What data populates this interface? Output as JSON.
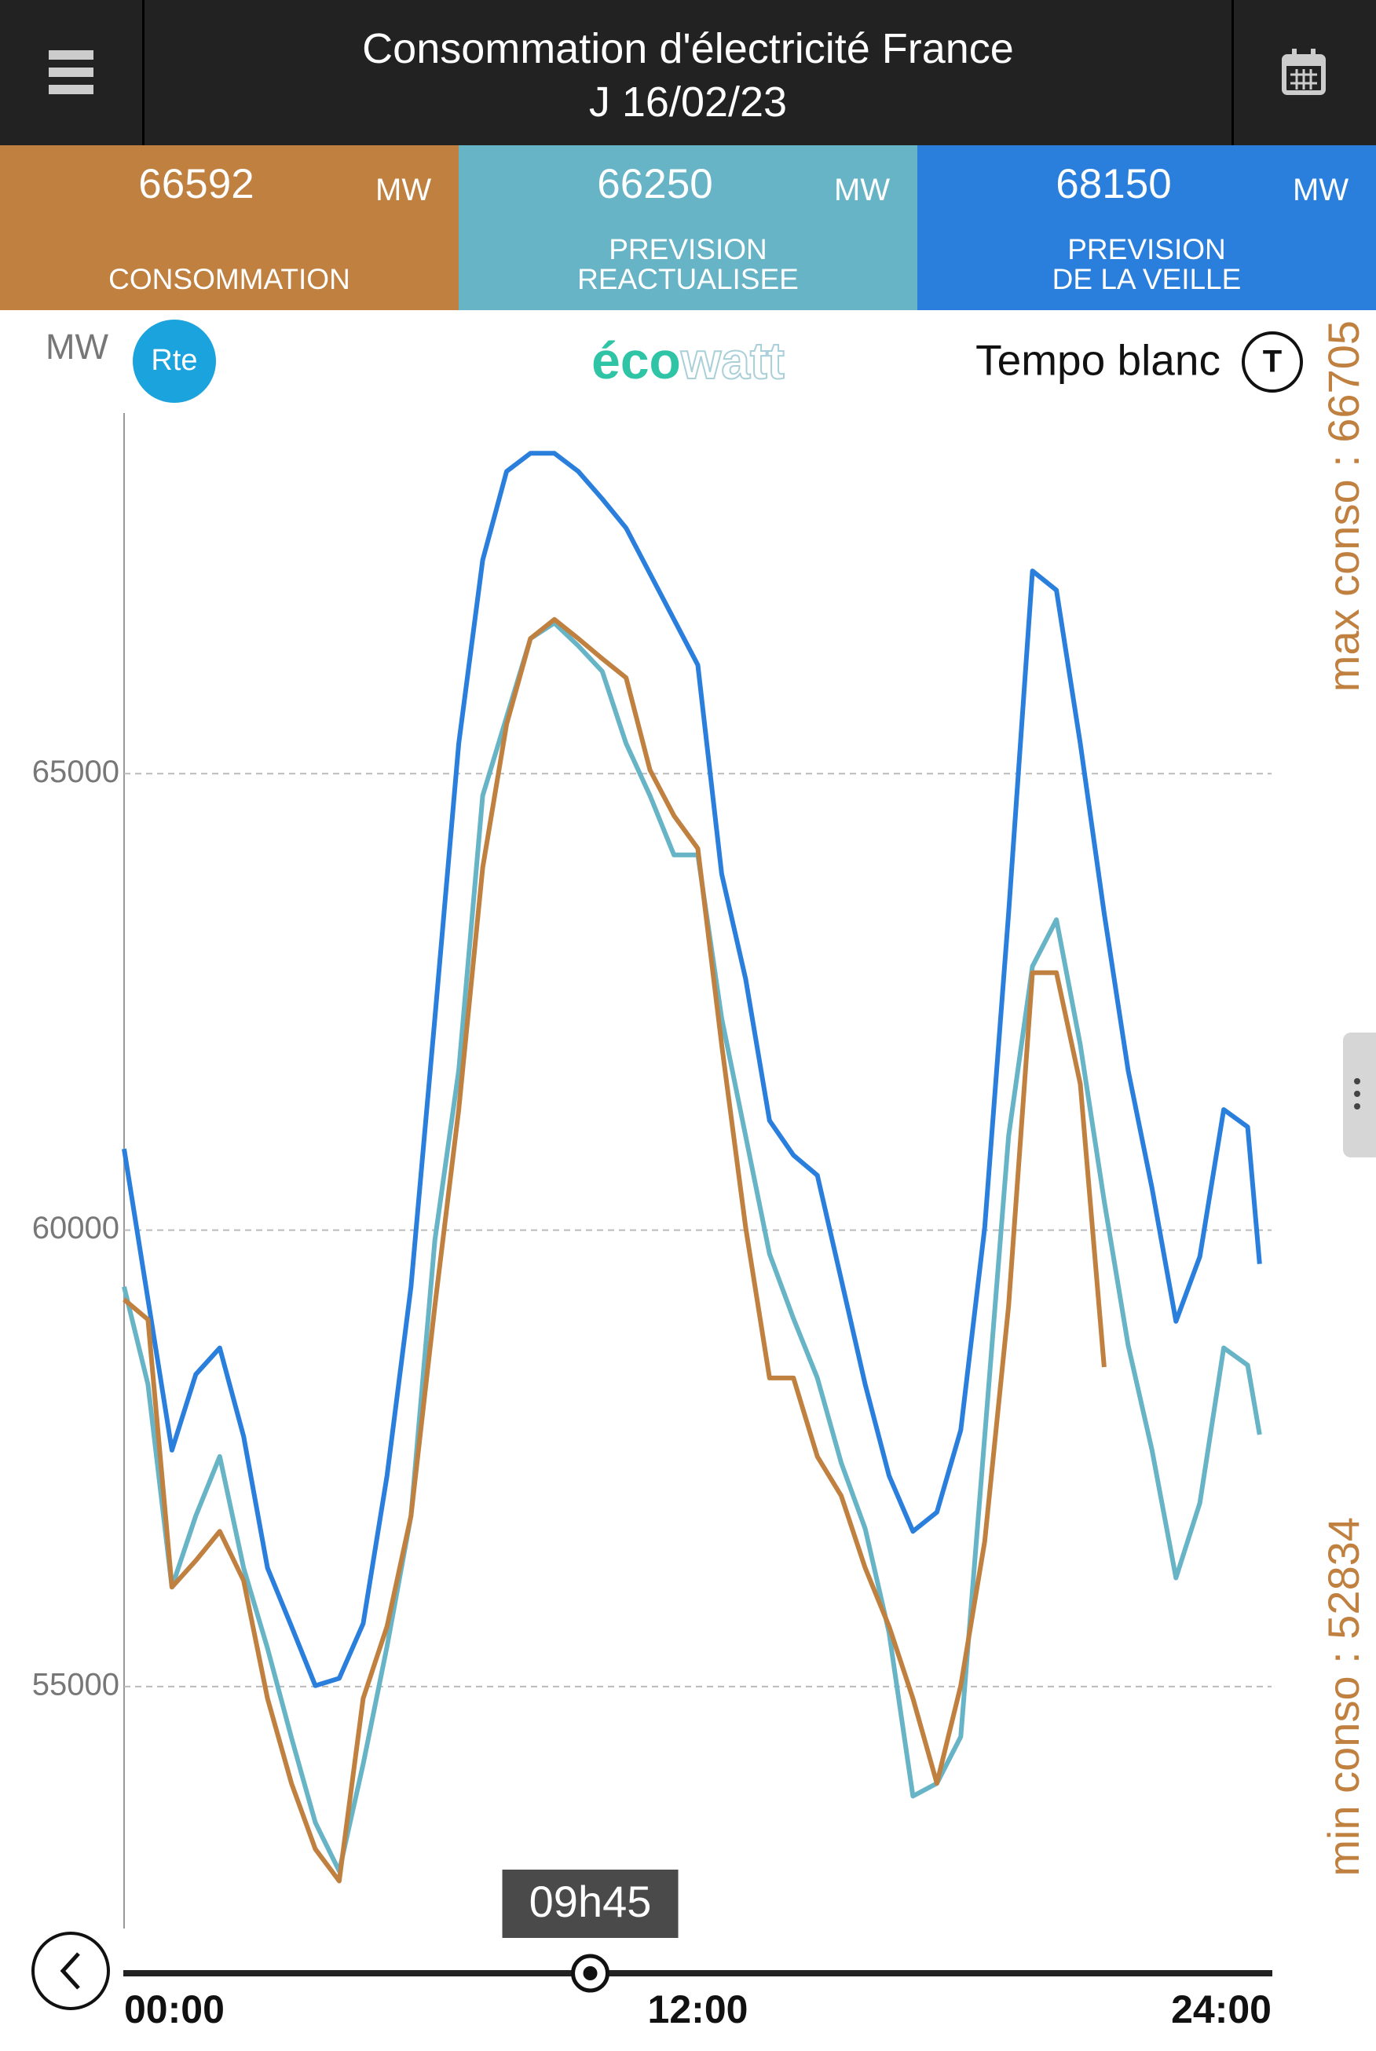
{
  "header": {
    "title": "Consommation d'électricité France",
    "date": "J 16/02/23"
  },
  "stats": [
    {
      "value": 66592,
      "unit": "MW"
    },
    {
      "value": 66250,
      "unit": "MW"
    },
    {
      "value": 68150,
      "unit": "MW"
    }
  ],
  "brand": {
    "rte": "Rte",
    "eco": "éco",
    "watt": "watt"
  },
  "tempo": {
    "label": "Tempo blanc",
    "badge": "T"
  },
  "chart_data": {
    "type": "line",
    "y_label": "MW",
    "x": [
      0,
      0.5,
      1,
      1.5,
      2,
      2.5,
      3,
      3.5,
      4,
      4.5,
      5,
      5.5,
      6,
      6.5,
      7,
      7.5,
      8,
      8.5,
      9,
      9.5,
      10,
      10.5,
      11,
      11.5,
      12,
      12.5,
      13,
      13.5,
      14,
      14.5,
      15,
      15.5,
      16,
      16.5,
      17,
      17.5,
      18,
      18.5,
      19,
      19.5,
      20,
      20.5,
      21,
      21.5,
      22,
      22.5,
      23,
      23.5,
      23.75
    ],
    "series": [
      {
        "name": "CONSOMMATION",
        "color": "#c0803f",
        "values": [
          59240,
          59020,
          56090,
          56380,
          56700,
          56160,
          54870,
          53940,
          53220,
          52870,
          54870,
          55660,
          56870,
          59170,
          61320,
          63970,
          65540,
          66480,
          66690,
          66480,
          66260,
          66050,
          65040,
          64540,
          64180,
          62030,
          60030,
          58380,
          58380,
          57520,
          57090,
          56300,
          55660,
          54870,
          53940,
          55010,
          56590,
          59170,
          62820,
          62820,
          61600,
          58500,
          null,
          null,
          null,
          null,
          null,
          null,
          null
        ]
      },
      {
        "name": "PREVISION\nREACTUALISEE",
        "color": "#67b4c6",
        "values": [
          59380,
          58310,
          56090,
          56870,
          57520,
          56300,
          55420,
          54440,
          53510,
          52980,
          54150,
          55440,
          56870,
          59890,
          61750,
          64760,
          65620,
          66480,
          66650,
          66400,
          66120,
          65330,
          64760,
          64110,
          64110,
          62320,
          61030,
          59740,
          59030,
          58380,
          57450,
          56730,
          55590,
          53800,
          53940,
          54450,
          57740,
          61030,
          62890,
          63400,
          62030,
          60320,
          58740,
          57590,
          56190,
          57010,
          58710,
          58520,
          57760
        ]
      },
      {
        "name": "PREVISION\nDE LA VEILLE",
        "color": "#2a7fdc",
        "values": [
          60890,
          59240,
          57590,
          58420,
          58710,
          57740,
          56300,
          55660,
          55010,
          55090,
          55690,
          57310,
          59380,
          62320,
          65330,
          67340,
          68310,
          68510,
          68510,
          68310,
          68010,
          67690,
          67190,
          66690,
          66190,
          63900,
          62750,
          61200,
          60820,
          60600,
          59460,
          58310,
          57310,
          56700,
          56910,
          57810,
          60030,
          63470,
          67220,
          67010,
          65330,
          63470,
          61750,
          60460,
          59000,
          59710,
          61320,
          61130,
          59630
        ]
      }
    ],
    "xlim": [
      0,
      24
    ],
    "ylim": [
      52350,
      68950
    ],
    "xticks": [
      {
        "value": 0,
        "label": "00:00"
      },
      {
        "value": 12,
        "label": "12:00"
      },
      {
        "value": 24,
        "label": "24:00"
      }
    ],
    "yticks": [
      55000,
      60000,
      65000
    ],
    "grid": true,
    "cursor": {
      "x": 9.75,
      "label": "09h45"
    },
    "annotations": [
      "max conso : 66705",
      "min conso : 52834"
    ]
  }
}
